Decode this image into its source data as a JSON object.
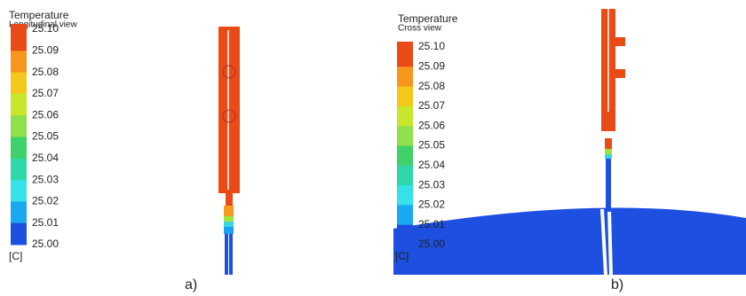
{
  "panels": [
    {
      "title": "Temperature",
      "subtitle": "Longitudinal view",
      "legend_labels": [
        "25.10",
        "25.09",
        "25.08",
        "25.07",
        "25.06",
        "25.05",
        "25.04",
        "25.03",
        "25.02",
        "25.01",
        "25.00"
      ],
      "unit": "[C]",
      "caption": "a)"
    },
    {
      "title": "Temperature",
      "subtitle": "Cross view",
      "legend_labels": [
        "25.10",
        "25.09",
        "25.08",
        "25.07",
        "25.06",
        "25.05",
        "25.04",
        "25.03",
        "25.02",
        "25.01",
        "25.00"
      ],
      "unit": "[C]",
      "caption": "b)"
    }
  ]
}
